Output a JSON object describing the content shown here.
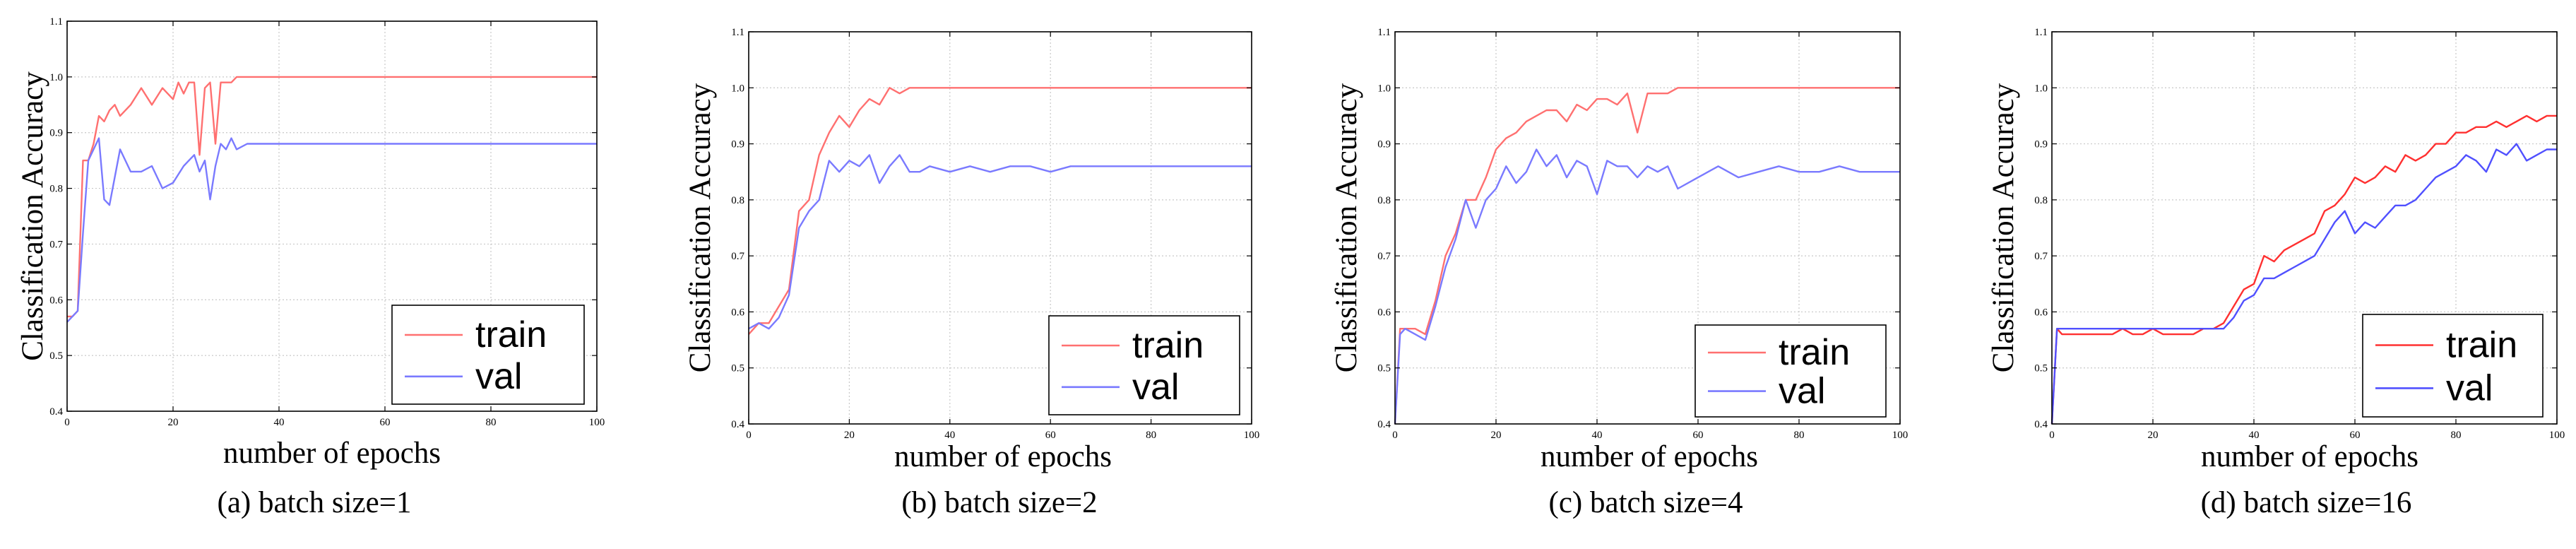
{
  "colors": {
    "train": "#ff7070",
    "val": "#7a7aff",
    "train_d": "#ff3030",
    "val_d": "#5050ff"
  },
  "chart_data": [
    {
      "type": "line",
      "caption": "(a) batch size=1",
      "xlabel": "number of epochs",
      "ylabel": "Classification Accuracy",
      "xlim": [
        0,
        100
      ],
      "ylim": [
        0.4,
        1.1
      ],
      "xticks": [
        0,
        20,
        40,
        60,
        80,
        100
      ],
      "yticks": [
        0.4,
        0.5,
        0.6,
        0.7,
        0.8,
        0.9,
        1.0,
        1.1
      ],
      "xtick_labels": [
        "0",
        "20",
        "40",
        "60",
        "80",
        "100"
      ],
      "ytick_labels": [
        "0.4",
        "0.5",
        "0.6",
        "0.7",
        "0.8",
        "0.9",
        "1.0",
        "1.1"
      ],
      "grid": true,
      "legend_position": "bottom-right",
      "series": [
        {
          "name": "train",
          "x": [
            0,
            1,
            2,
            3,
            4,
            5,
            6,
            7,
            8,
            9,
            10,
            12,
            14,
            16,
            18,
            20,
            21,
            22,
            23,
            24,
            25,
            26,
            27,
            28,
            29,
            30,
            31,
            32,
            100
          ],
          "y": [
            0.57,
            0.57,
            0.58,
            0.85,
            0.85,
            0.88,
            0.93,
            0.92,
            0.94,
            0.95,
            0.93,
            0.95,
            0.98,
            0.95,
            0.98,
            0.96,
            0.99,
            0.97,
            0.99,
            0.99,
            0.86,
            0.98,
            0.99,
            0.88,
            0.99,
            0.99,
            0.99,
            1.0,
            1.0
          ]
        },
        {
          "name": "val",
          "x": [
            0,
            1,
            2,
            3,
            4,
            5,
            6,
            7,
            8,
            10,
            12,
            14,
            16,
            18,
            20,
            22,
            23,
            24,
            25,
            26,
            27,
            28,
            29,
            30,
            31,
            32,
            34,
            100
          ],
          "y": [
            0.56,
            0.57,
            0.58,
            0.72,
            0.85,
            0.87,
            0.89,
            0.78,
            0.77,
            0.87,
            0.83,
            0.83,
            0.84,
            0.8,
            0.81,
            0.84,
            0.85,
            0.86,
            0.83,
            0.85,
            0.78,
            0.84,
            0.88,
            0.87,
            0.89,
            0.87,
            0.88,
            0.88
          ]
        }
      ]
    },
    {
      "type": "line",
      "caption": "(b) batch size=2",
      "xlabel": "number of epochs",
      "ylabel": "Classification Accuracy",
      "xlim": [
        0,
        100
      ],
      "ylim": [
        0.4,
        1.1
      ],
      "xticks": [
        0,
        20,
        40,
        60,
        80,
        100
      ],
      "yticks": [
        0.4,
        0.5,
        0.6,
        0.7,
        0.8,
        0.9,
        1.0,
        1.1
      ],
      "xtick_labels": [
        "0",
        "20",
        "40",
        "60",
        "80",
        "100"
      ],
      "ytick_labels": [
        "0.4",
        "0.5",
        "0.6",
        "0.7",
        "0.8",
        "0.9",
        "1.0",
        "1.1"
      ],
      "grid": true,
      "legend_position": "bottom-right",
      "series": [
        {
          "name": "train",
          "x": [
            0,
            2,
            4,
            6,
            8,
            10,
            11,
            12,
            14,
            16,
            18,
            20,
            22,
            24,
            26,
            28,
            30,
            32,
            34,
            100
          ],
          "y": [
            0.56,
            0.58,
            0.58,
            0.61,
            0.64,
            0.78,
            0.79,
            0.8,
            0.88,
            0.92,
            0.95,
            0.93,
            0.96,
            0.98,
            0.97,
            1.0,
            0.99,
            1.0,
            1.0,
            1.0
          ]
        },
        {
          "name": "val",
          "x": [
            0,
            2,
            4,
            6,
            8,
            10,
            12,
            14,
            16,
            18,
            20,
            22,
            24,
            26,
            28,
            30,
            32,
            34,
            36,
            40,
            44,
            48,
            52,
            56,
            60,
            64,
            68,
            100
          ],
          "y": [
            0.57,
            0.58,
            0.57,
            0.59,
            0.63,
            0.75,
            0.78,
            0.8,
            0.87,
            0.85,
            0.87,
            0.86,
            0.88,
            0.83,
            0.86,
            0.88,
            0.85,
            0.85,
            0.86,
            0.85,
            0.86,
            0.85,
            0.86,
            0.86,
            0.85,
            0.86,
            0.86,
            0.86
          ]
        }
      ]
    },
    {
      "type": "line",
      "caption": "(c) batch size=4",
      "xlabel": "number of epochs",
      "ylabel": "Classification Accuracy",
      "xlim": [
        0,
        100
      ],
      "ylim": [
        0.4,
        1.1
      ],
      "xticks": [
        0,
        20,
        40,
        60,
        80,
        100
      ],
      "yticks": [
        0.4,
        0.5,
        0.6,
        0.7,
        0.8,
        0.9,
        1.0,
        1.1
      ],
      "xtick_labels": [
        "0",
        "20",
        "40",
        "60",
        "80",
        "100"
      ],
      "ytick_labels": [
        "0.4",
        "0.5",
        "0.6",
        "0.7",
        "0.8",
        "0.9",
        "1.0",
        "1.1"
      ],
      "grid": true,
      "legend_position": "bottom-right",
      "series": [
        {
          "name": "train",
          "x": [
            0,
            1,
            2,
            4,
            6,
            8,
            10,
            12,
            14,
            16,
            18,
            20,
            22,
            24,
            26,
            28,
            30,
            32,
            34,
            36,
            38,
            40,
            42,
            44,
            46,
            48,
            50,
            52,
            54,
            56,
            100
          ],
          "y": [
            0.4,
            0.57,
            0.57,
            0.57,
            0.56,
            0.62,
            0.7,
            0.74,
            0.8,
            0.8,
            0.84,
            0.89,
            0.91,
            0.92,
            0.94,
            0.95,
            0.96,
            0.96,
            0.94,
            0.97,
            0.96,
            0.98,
            0.98,
            0.97,
            0.99,
            0.92,
            0.99,
            0.99,
            0.99,
            1.0,
            1.0
          ]
        },
        {
          "name": "val",
          "x": [
            0,
            1,
            2,
            4,
            6,
            8,
            10,
            12,
            14,
            16,
            18,
            20,
            22,
            24,
            26,
            28,
            30,
            32,
            34,
            36,
            38,
            40,
            42,
            44,
            46,
            48,
            50,
            52,
            54,
            56,
            60,
            64,
            68,
            72,
            76,
            80,
            84,
            88,
            92,
            96,
            100
          ],
          "y": [
            0.4,
            0.56,
            0.57,
            0.56,
            0.55,
            0.61,
            0.68,
            0.73,
            0.8,
            0.75,
            0.8,
            0.82,
            0.86,
            0.83,
            0.85,
            0.89,
            0.86,
            0.88,
            0.84,
            0.87,
            0.86,
            0.81,
            0.87,
            0.86,
            0.86,
            0.84,
            0.86,
            0.85,
            0.86,
            0.82,
            0.84,
            0.86,
            0.84,
            0.85,
            0.86,
            0.85,
            0.85,
            0.86,
            0.85,
            0.85,
            0.85
          ]
        }
      ]
    },
    {
      "type": "line",
      "caption": "(d) batch size=16",
      "xlabel": "number of epochs",
      "ylabel": "Classification Accuracy",
      "xlim": [
        0,
        100
      ],
      "ylim": [
        0.4,
        1.1
      ],
      "xticks": [
        0,
        20,
        40,
        60,
        80,
        100
      ],
      "yticks": [
        0.4,
        0.5,
        0.6,
        0.7,
        0.8,
        0.9,
        1.0,
        1.1
      ],
      "xtick_labels": [
        "0",
        "20",
        "40",
        "60",
        "80",
        "100"
      ],
      "ytick_labels": [
        "0.4",
        "0.5",
        "0.6",
        "0.7",
        "0.8",
        "0.9",
        "1.0",
        "1.1"
      ],
      "grid": true,
      "legend_position": "bottom-right",
      "series": [
        {
          "name": "train",
          "x": [
            0,
            1,
            2,
            4,
            6,
            8,
            10,
            12,
            14,
            16,
            18,
            20,
            22,
            24,
            26,
            28,
            30,
            32,
            34,
            36,
            38,
            40,
            42,
            44,
            46,
            48,
            50,
            52,
            54,
            56,
            58,
            60,
            62,
            64,
            66,
            68,
            70,
            72,
            74,
            76,
            78,
            80,
            82,
            84,
            86,
            88,
            90,
            92,
            94,
            96,
            98,
            100
          ],
          "y": [
            0.4,
            0.57,
            0.56,
            0.56,
            0.56,
            0.56,
            0.56,
            0.56,
            0.57,
            0.56,
            0.56,
            0.57,
            0.56,
            0.56,
            0.56,
            0.56,
            0.57,
            0.57,
            0.58,
            0.61,
            0.64,
            0.65,
            0.7,
            0.69,
            0.71,
            0.72,
            0.73,
            0.74,
            0.78,
            0.79,
            0.81,
            0.84,
            0.83,
            0.84,
            0.86,
            0.85,
            0.88,
            0.87,
            0.88,
            0.9,
            0.9,
            0.92,
            0.92,
            0.93,
            0.93,
            0.94,
            0.93,
            0.94,
            0.95,
            0.94,
            0.95,
            0.95
          ]
        },
        {
          "name": "val",
          "x": [
            0,
            1,
            2,
            4,
            6,
            8,
            10,
            12,
            14,
            16,
            18,
            20,
            22,
            24,
            26,
            28,
            30,
            32,
            34,
            36,
            38,
            40,
            42,
            44,
            46,
            48,
            50,
            52,
            54,
            56,
            58,
            60,
            62,
            64,
            66,
            68,
            70,
            72,
            74,
            76,
            78,
            80,
            82,
            84,
            86,
            88,
            90,
            92,
            94,
            96,
            98,
            100
          ],
          "y": [
            0.4,
            0.57,
            0.57,
            0.57,
            0.57,
            0.57,
            0.57,
            0.57,
            0.57,
            0.57,
            0.57,
            0.57,
            0.57,
            0.57,
            0.57,
            0.57,
            0.57,
            0.57,
            0.57,
            0.59,
            0.62,
            0.63,
            0.66,
            0.66,
            0.67,
            0.68,
            0.69,
            0.7,
            0.73,
            0.76,
            0.78,
            0.74,
            0.76,
            0.75,
            0.77,
            0.79,
            0.79,
            0.8,
            0.82,
            0.84,
            0.85,
            0.86,
            0.88,
            0.87,
            0.85,
            0.89,
            0.88,
            0.9,
            0.87,
            0.88,
            0.89,
            0.89
          ]
        }
      ]
    }
  ]
}
